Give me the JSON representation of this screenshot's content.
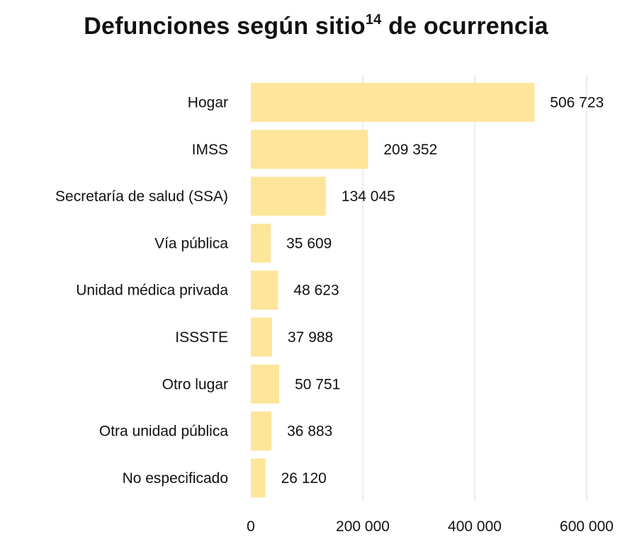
{
  "title": {
    "main": "Defunciones según sitio",
    "superscript": "14",
    "suffix": " de ocurrencia"
  },
  "colors": {
    "bar": "#fde59a",
    "grid": "#e6e6e6",
    "text": "#111111"
  },
  "chart_data": {
    "type": "bar",
    "orientation": "horizontal",
    "title": "Defunciones según sitio14 de ocurrencia",
    "categories": [
      "Hogar",
      "IMSS",
      "Secretaría de salud (SSA)",
      "Vía pública",
      "Unidad médica privada",
      "ISSSTE",
      "Otro lugar",
      "Otra unidad pública",
      "No especificado"
    ],
    "values": [
      506723,
      209352,
      134045,
      35609,
      48623,
      37988,
      50751,
      36883,
      26120
    ],
    "value_labels": [
      "506 723",
      "209 352",
      "134 045",
      "35 609",
      "48 623",
      "37 988",
      "50 751",
      "36 883",
      "26 120"
    ],
    "xlim": [
      0,
      600000
    ],
    "xticks": [
      0,
      200000,
      400000,
      600000
    ],
    "xtick_labels": [
      "0",
      "200 000",
      "400 000",
      "600 000"
    ],
    "xlabel": "",
    "ylabel": "",
    "grid": true,
    "legend": "none"
  }
}
